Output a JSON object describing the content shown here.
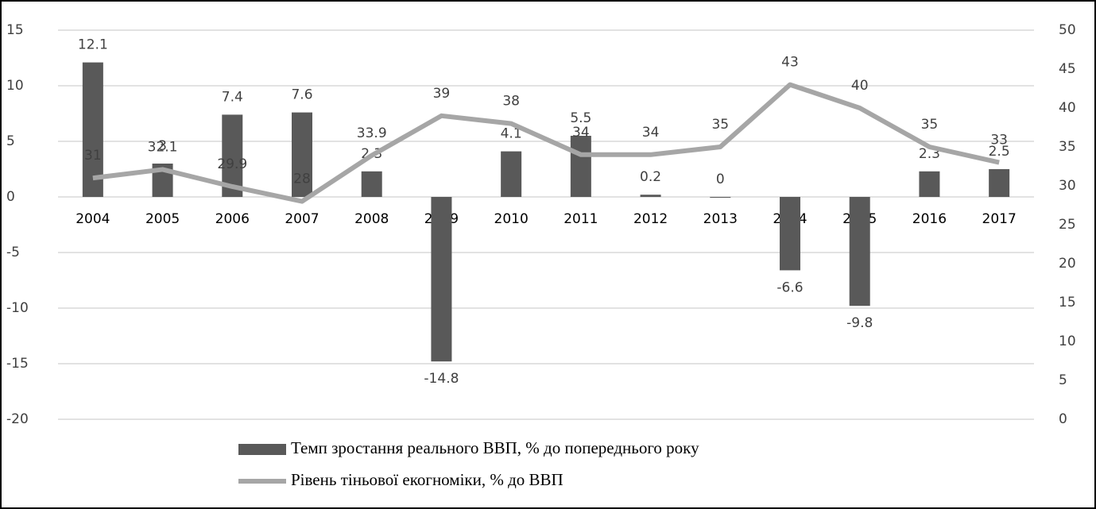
{
  "chart_data": {
    "type": "bar",
    "categories": [
      "2004",
      "2005",
      "2006",
      "2007",
      "2008",
      "2009",
      "2010",
      "2011",
      "2012",
      "2013",
      "2014",
      "2015",
      "2016",
      "2017"
    ],
    "series": [
      {
        "name": "Темп  зростання реального  ВВП, % до попереднього року",
        "type": "bar",
        "color": "#595959",
        "values": [
          12.1,
          3,
          7.4,
          7.6,
          2.3,
          -14.8,
          4.1,
          5.5,
          0.2,
          0,
          -6.6,
          -9.8,
          2.3,
          2.5
        ]
      },
      {
        "name": "Рівень тіньової екогноміки, % до  ВВП",
        "type": "line",
        "color": "#a6a6a6",
        "axis": "y2",
        "values": [
          31,
          32.1,
          29.9,
          28,
          33.9,
          39,
          38,
          34,
          34,
          35,
          43,
          40,
          35,
          33
        ]
      }
    ],
    "ylim": [
      -20,
      15
    ],
    "yticks": [
      -20,
      -15,
      -10,
      -5,
      0,
      5,
      10,
      15
    ],
    "y2lim": [
      0,
      50
    ],
    "y2ticks": [
      0,
      5,
      10,
      15,
      20,
      25,
      30,
      35,
      40,
      45,
      50
    ],
    "grid": true,
    "legend": "bottom"
  }
}
